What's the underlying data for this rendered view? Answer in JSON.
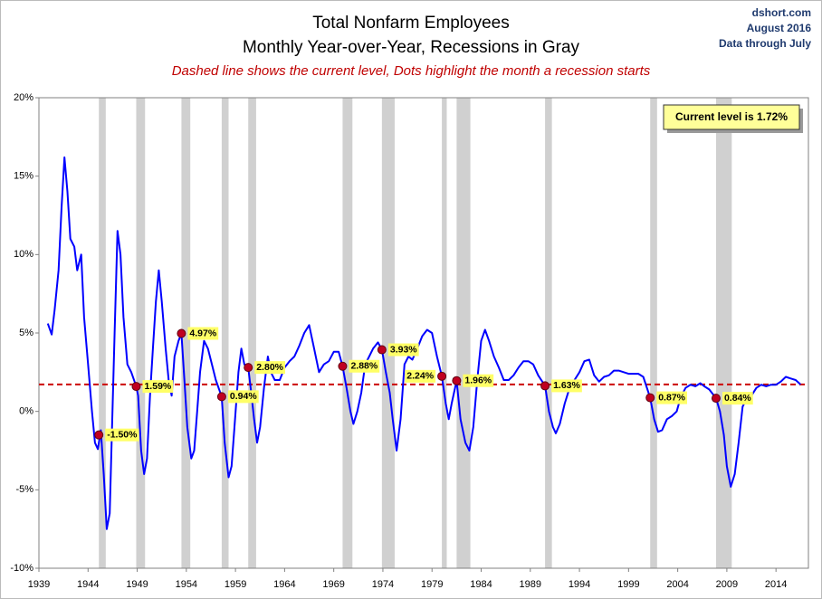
{
  "chart_data": {
    "type": "line",
    "title": "Total Nonfarm Employees",
    "subtitle": "Monthly Year-over-Year, Recessions in Gray",
    "note": "Dashed line shows the current level, Dots highlight the month a recession starts",
    "source": [
      "dshort.com",
      "August 2016",
      "Data through July"
    ],
    "annotation": "Current level is 1.72%",
    "current_level": 1.72,
    "color": "#0000ff",
    "xlim": [
      1939,
      2017.3
    ],
    "xticks": [
      1939,
      1944,
      1949,
      1954,
      1959,
      1964,
      1969,
      1974,
      1979,
      1984,
      1989,
      1994,
      1999,
      2004,
      2009,
      2014
    ],
    "ylim": [
      -10,
      20
    ],
    "yticks": [
      {
        "value": -10,
        "label": "-10%"
      },
      {
        "value": -5,
        "label": "-5%"
      },
      {
        "value": 0,
        "label": "0%"
      },
      {
        "value": 5,
        "label": "5%"
      },
      {
        "value": 10,
        "label": "10%"
      },
      {
        "value": 15,
        "label": "15%"
      },
      {
        "value": 20,
        "label": "20%"
      }
    ],
    "recessions": [
      [
        1945.1,
        1945.8
      ],
      [
        1948.9,
        1949.8
      ],
      [
        1953.5,
        1954.4
      ],
      [
        1957.6,
        1958.3
      ],
      [
        1960.3,
        1961.1
      ],
      [
        1969.9,
        1970.9
      ],
      [
        1973.9,
        1975.2
      ],
      [
        1980.0,
        1980.5
      ],
      [
        1981.5,
        1982.9
      ],
      [
        1990.5,
        1991.2
      ],
      [
        2001.2,
        2001.9
      ],
      [
        2007.9,
        2009.5
      ]
    ],
    "recession_starts": {
      "x": [
        1945.1,
        1948.9,
        1953.5,
        1957.6,
        1960.3,
        1969.9,
        1973.9,
        1980.0,
        1981.5,
        1990.5,
        2001.2,
        2007.9
      ],
      "values": [
        -1.5,
        1.59,
        4.97,
        0.94,
        2.8,
        2.88,
        3.93,
        2.24,
        1.96,
        1.63,
        0.87,
        0.84
      ],
      "value_labels": [
        "-1.50%",
        "1.59%",
        "4.97%",
        "0.94%",
        "2.80%",
        "2.88%",
        "3.93%",
        "2.24%",
        "1.96%",
        "1.63%",
        "0.87%",
        "0.84%"
      ]
    },
    "x": [
      1939.9,
      1940.3,
      1940.6,
      1941.0,
      1941.3,
      1941.6,
      1941.9,
      1942.2,
      1942.6,
      1942.9,
      1943.3,
      1943.6,
      1944.0,
      1944.4,
      1944.7,
      1945.0,
      1945.3,
      1945.6,
      1945.9,
      1946.2,
      1946.4,
      1946.7,
      1947.0,
      1947.3,
      1947.6,
      1948.0,
      1948.4,
      1948.9,
      1949.1,
      1949.4,
      1949.7,
      1950.0,
      1950.3,
      1950.6,
      1950.9,
      1951.2,
      1951.5,
      1951.9,
      1952.2,
      1952.5,
      1952.8,
      1953.2,
      1953.5,
      1953.8,
      1954.1,
      1954.5,
      1954.8,
      1955.1,
      1955.4,
      1955.8,
      1956.2,
      1956.6,
      1957.0,
      1957.6,
      1957.9,
      1958.3,
      1958.6,
      1958.9,
      1959.3,
      1959.6,
      1959.9,
      1960.3,
      1960.6,
      1960.9,
      1961.2,
      1961.5,
      1961.9,
      1962.3,
      1962.6,
      1963.0,
      1963.5,
      1964.0,
      1964.5,
      1965.0,
      1965.5,
      1966.0,
      1966.5,
      1967.0,
      1967.5,
      1968.0,
      1968.5,
      1969.0,
      1969.5,
      1969.9,
      1970.3,
      1970.7,
      1971.0,
      1971.4,
      1971.8,
      1972.2,
      1972.6,
      1973.0,
      1973.5,
      1973.9,
      1974.3,
      1974.7,
      1975.0,
      1975.4,
      1975.8,
      1976.2,
      1976.6,
      1977.0,
      1977.5,
      1978.0,
      1978.5,
      1979.0,
      1979.5,
      1980.0,
      1980.4,
      1980.7,
      1981.0,
      1981.5,
      1981.9,
      1982.4,
      1982.8,
      1983.2,
      1983.6,
      1984.0,
      1984.4,
      1984.8,
      1985.3,
      1985.8,
      1986.3,
      1986.8,
      1987.3,
      1987.8,
      1988.3,
      1988.8,
      1989.3,
      1989.8,
      1990.5,
      1990.9,
      1991.3,
      1991.6,
      1992.0,
      1992.5,
      1993.0,
      1993.5,
      1994.0,
      1994.5,
      1995.0,
      1995.5,
      1996.0,
      1996.5,
      1997.0,
      1997.5,
      1998.0,
      1998.5,
      1999.0,
      1999.5,
      2000.0,
      2000.5,
      2001.2,
      2001.6,
      2002.0,
      2002.4,
      2002.9,
      2003.4,
      2003.9,
      2004.3,
      2004.8,
      2005.3,
      2005.8,
      2006.3,
      2006.7,
      2007.2,
      2007.9,
      2008.3,
      2008.7,
      2009.0,
      2009.4,
      2009.8,
      2010.2,
      2010.6,
      2011.0,
      2011.5,
      2012.0,
      2012.5,
      2013.0,
      2013.5,
      2014.0,
      2014.5,
      2015.0,
      2015.5,
      2016.0,
      2016.5
    ],
    "values": [
      5.6,
      4.9,
      6.5,
      9,
      13,
      16.2,
      14,
      11,
      10.5,
      9,
      10,
      6,
      3,
      0,
      -2,
      -2.4,
      -1.2,
      -4,
      -7.5,
      -6.5,
      -2,
      5,
      11.5,
      10,
      6,
      3,
      2.5,
      1.59,
      1,
      -2.5,
      -4,
      -3,
      1,
      4,
      7,
      9,
      7,
      4,
      2,
      1,
      3.5,
      4.5,
      4.97,
      2,
      -1,
      -3,
      -2.5,
      0,
      2.5,
      4.5,
      4,
      3,
      2,
      0.94,
      -2,
      -4.2,
      -3.5,
      -1,
      2.5,
      4,
      3,
      2.8,
      1.2,
      -0.5,
      -2,
      -1,
      1.5,
      3.5,
      2.5,
      2,
      2,
      2.8,
      3.2,
      3.5,
      4.2,
      5,
      5.5,
      4,
      2.5,
      3,
      3.2,
      3.8,
      3.8,
      2.88,
      1.5,
      0,
      -0.8,
      0,
      1.2,
      3,
      3.5,
      4,
      4.4,
      3.93,
      2.5,
      1.2,
      -0.5,
      -2.5,
      -0.5,
      3,
      3.5,
      3.3,
      4,
      4.8,
      5.2,
      5,
      3.5,
      2.24,
      0.5,
      -0.5,
      0.5,
      1.96,
      -0.5,
      -2,
      -2.5,
      -1,
      2,
      4.5,
      5.2,
      4.5,
      3.5,
      2.8,
      2,
      2,
      2.3,
      2.8,
      3.2,
      3.2,
      3,
      2.3,
      1.63,
      0,
      -1,
      -1.4,
      -0.8,
      0.5,
      1.5,
      2,
      2.5,
      3.2,
      3.3,
      2.3,
      1.9,
      2.2,
      2.3,
      2.6,
      2.6,
      2.5,
      2.4,
      2.4,
      2.4,
      2.2,
      0.87,
      -0.5,
      -1.3,
      -1.2,
      -0.5,
      -0.3,
      0,
      0.9,
      1.5,
      1.7,
      1.6,
      1.8,
      1.6,
      1.4,
      0.84,
      0,
      -1.5,
      -3.5,
      -4.8,
      -4,
      -2,
      0.3,
      0.8,
      1,
      1.5,
      1.7,
      1.6,
      1.7,
      1.7,
      1.9,
      2.2,
      2.1,
      2,
      1.72
    ]
  }
}
